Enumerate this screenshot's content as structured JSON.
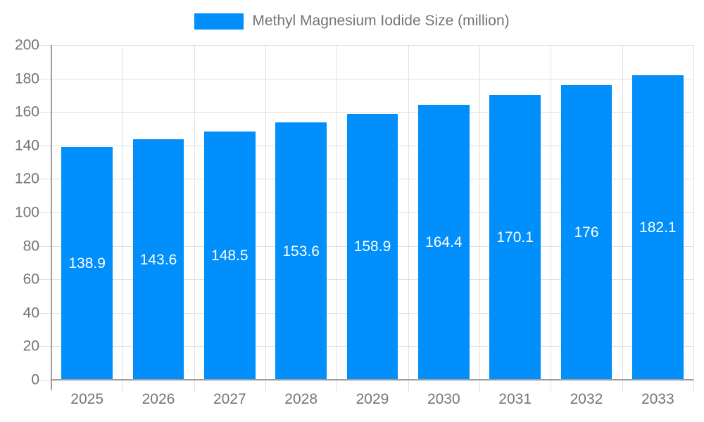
{
  "chart_data": {
    "type": "bar",
    "title": "Methyl Magnesium Iodide Size (million)",
    "categories": [
      "2025",
      "2026",
      "2027",
      "2028",
      "2029",
      "2030",
      "2031",
      "2032",
      "2033"
    ],
    "values": [
      138.9,
      143.6,
      148.5,
      153.6,
      158.9,
      164.4,
      170.1,
      176,
      182.1
    ],
    "xlabel": "",
    "ylabel": "",
    "ylim": [
      0,
      200
    ],
    "ytick_step": 20,
    "grid": true,
    "legend_position": "top",
    "value_labels_position": "center-of-bar",
    "colors": {
      "bar": "#008FFB",
      "grid": "#e0e0e0",
      "axis_line": "#9e9e9e",
      "axis_label": "#757575",
      "value_label": "#ffffff"
    }
  }
}
